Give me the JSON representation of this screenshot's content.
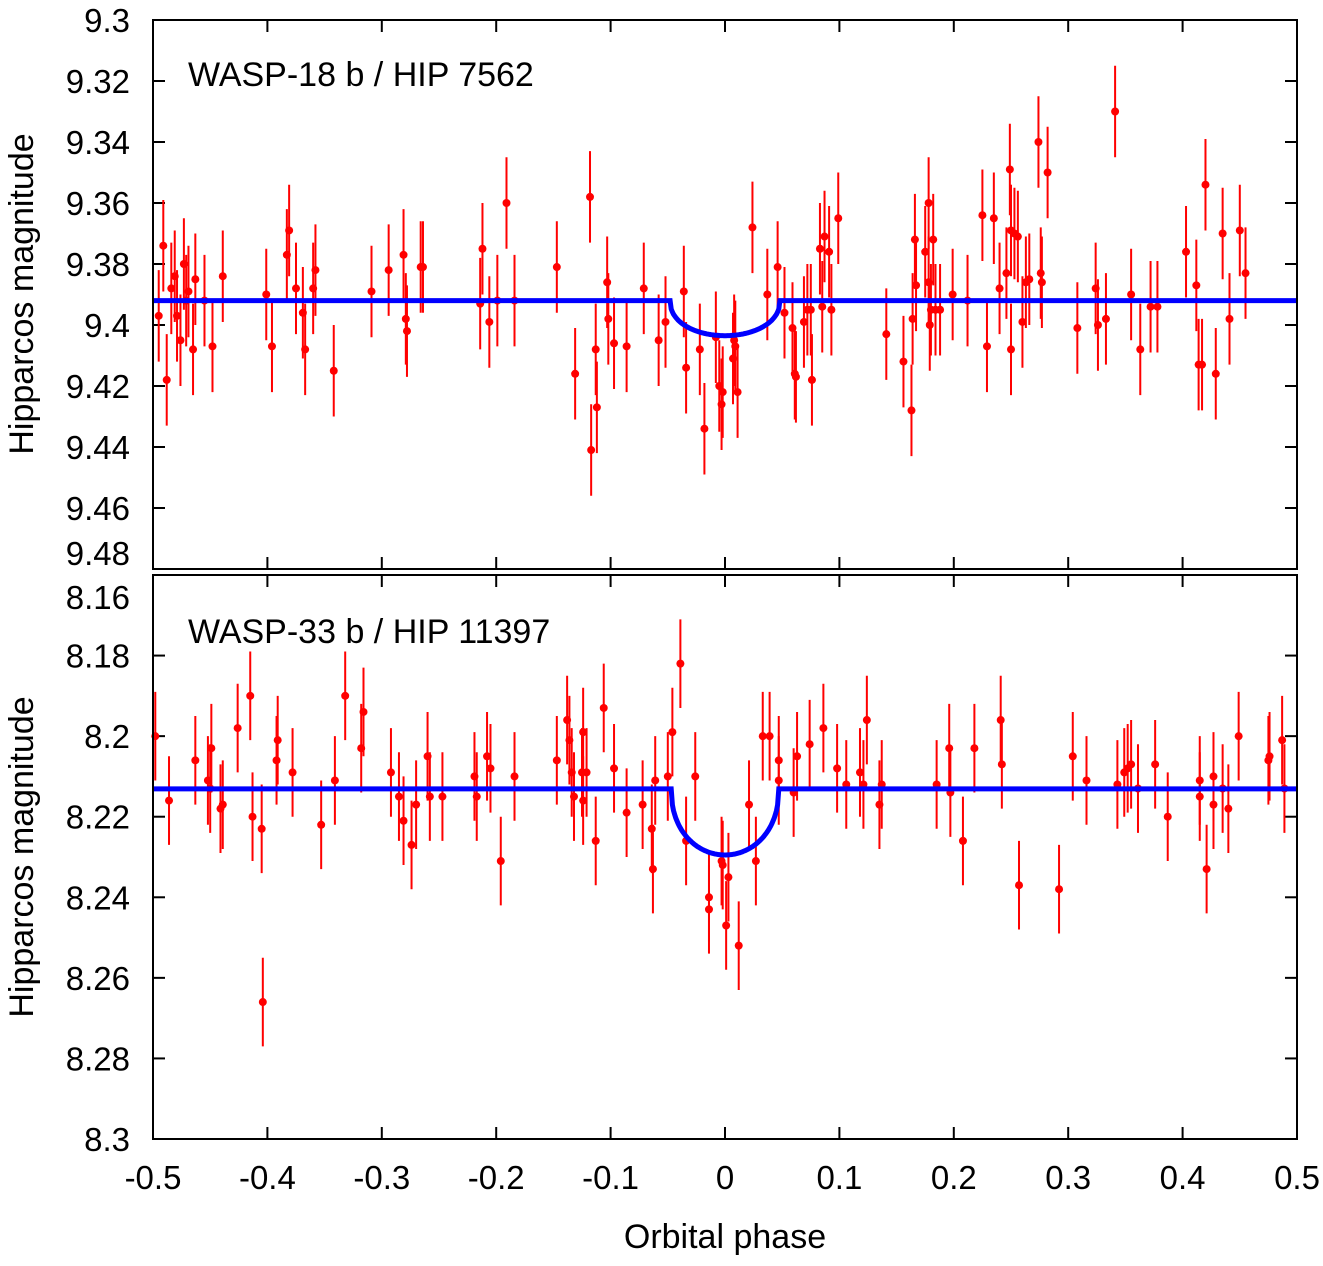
{
  "chart_data": [
    {
      "type": "scatter",
      "title": "WASP-18 b / HIP 7562",
      "xlabel": "",
      "ylabel": "Hipparcos magnitude",
      "xlim": [
        -0.5,
        0.5
      ],
      "ylim": [
        9.3,
        9.48
      ],
      "y_inverted": true,
      "y_ticks": [
        "9.3",
        "9.32",
        "9.34",
        "9.36",
        "9.38",
        "9.4",
        "9.42",
        "9.44",
        "9.46",
        "9.48"
      ],
      "point_color": "#ff0000",
      "model_color": "#0000ff",
      "typical_error": 0.015,
      "model": {
        "baseline": 9.392,
        "transit_min": 9.4035,
        "ingress": -0.048,
        "egress": 0.048
      },
      "points": [
        [
          -0.495,
          9.397
        ],
        [
          -0.491,
          9.374
        ],
        [
          -0.488,
          9.418
        ],
        [
          -0.484,
          9.388
        ],
        [
          -0.481,
          9.384
        ],
        [
          -0.479,
          9.397
        ],
        [
          -0.476,
          9.405
        ],
        [
          -0.473,
          9.38
        ],
        [
          -0.471,
          9.392
        ],
        [
          -0.469,
          9.389
        ],
        [
          -0.465,
          9.408
        ],
        [
          -0.463,
          9.385
        ],
        [
          -0.455,
          9.392
        ],
        [
          -0.448,
          9.407
        ],
        [
          -0.439,
          9.384
        ],
        [
          -0.401,
          9.39
        ],
        [
          -0.396,
          9.407
        ],
        [
          -0.383,
          9.377
        ],
        [
          -0.381,
          9.369
        ],
        [
          -0.375,
          9.388
        ],
        [
          -0.369,
          9.396
        ],
        [
          -0.367,
          9.408
        ],
        [
          -0.36,
          9.388
        ],
        [
          -0.358,
          9.382
        ],
        [
          -0.342,
          9.415
        ],
        [
          -0.309,
          9.389
        ],
        [
          -0.294,
          9.382
        ],
        [
          -0.281,
          9.377
        ],
        [
          -0.279,
          9.398
        ],
        [
          -0.278,
          9.402
        ],
        [
          -0.266,
          9.381
        ],
        [
          -0.264,
          9.381
        ],
        [
          -0.214,
          9.393
        ],
        [
          -0.212,
          9.375
        ],
        [
          -0.206,
          9.399
        ],
        [
          -0.199,
          9.392
        ],
        [
          -0.191,
          9.36
        ],
        [
          -0.184,
          9.392
        ],
        [
          -0.147,
          9.381
        ],
        [
          -0.131,
          9.416
        ],
        [
          -0.118,
          9.358
        ],
        [
          -0.117,
          9.441
        ],
        [
          -0.113,
          9.408
        ],
        [
          -0.112,
          9.427
        ],
        [
          -0.103,
          9.386
        ],
        [
          -0.102,
          9.398
        ],
        [
          -0.097,
          9.406
        ],
        [
          -0.086,
          9.407
        ],
        [
          -0.071,
          9.388
        ],
        [
          -0.058,
          9.405
        ],
        [
          -0.052,
          9.399
        ],
        [
          -0.036,
          9.389
        ],
        [
          -0.034,
          9.414
        ],
        [
          -0.022,
          9.408
        ],
        [
          -0.018,
          9.434
        ],
        [
          -0.008,
          9.404
        ],
        [
          -0.005,
          9.42
        ],
        [
          -0.003,
          9.426
        ],
        [
          -0.002,
          9.422
        ],
        [
          0.007,
          9.411
        ],
        [
          0.008,
          9.405
        ],
        [
          0.009,
          9.407
        ],
        [
          0.011,
          9.422
        ],
        [
          0.024,
          9.368
        ],
        [
          0.037,
          9.39
        ],
        [
          0.046,
          9.381
        ],
        [
          0.052,
          9.396
        ],
        [
          0.059,
          9.401
        ],
        [
          0.061,
          9.416
        ],
        [
          0.062,
          9.417
        ],
        [
          0.069,
          9.399
        ],
        [
          0.072,
          9.395
        ],
        [
          0.075,
          9.395
        ],
        [
          0.076,
          9.418
        ],
        [
          0.083,
          9.375
        ],
        [
          0.085,
          9.394
        ],
        [
          0.087,
          9.371
        ],
        [
          0.091,
          9.376
        ],
        [
          0.093,
          9.395
        ],
        [
          0.099,
          9.365
        ],
        [
          0.141,
          9.403
        ],
        [
          0.156,
          9.412
        ],
        [
          0.163,
          9.428
        ],
        [
          0.164,
          9.398
        ],
        [
          0.166,
          9.372
        ],
        [
          0.167,
          9.387
        ],
        [
          0.175,
          9.376
        ],
        [
          0.178,
          9.386
        ],
        [
          0.178,
          9.36
        ],
        [
          0.179,
          9.4
        ],
        [
          0.18,
          9.395
        ],
        [
          0.182,
          9.372
        ],
        [
          0.184,
          9.395
        ],
        [
          0.188,
          9.395
        ],
        [
          0.199,
          9.39
        ],
        [
          0.212,
          9.392
        ],
        [
          0.225,
          9.364
        ],
        [
          0.229,
          9.407
        ],
        [
          0.235,
          9.365
        ],
        [
          0.24,
          9.388
        ],
        [
          0.246,
          9.383
        ],
        [
          0.249,
          9.349
        ],
        [
          0.25,
          9.369
        ],
        [
          0.25,
          9.408
        ],
        [
          0.253,
          9.37
        ],
        [
          0.256,
          9.371
        ],
        [
          0.26,
          9.399
        ],
        [
          0.263,
          9.386
        ],
        [
          0.266,
          9.385
        ],
        [
          0.274,
          9.34
        ],
        [
          0.276,
          9.383
        ],
        [
          0.277,
          9.386
        ],
        [
          0.282,
          9.35
        ],
        [
          0.308,
          9.401
        ],
        [
          0.324,
          9.388
        ],
        [
          0.326,
          9.4
        ],
        [
          0.333,
          9.398
        ],
        [
          0.341,
          9.33
        ],
        [
          0.355,
          9.39
        ],
        [
          0.363,
          9.408
        ],
        [
          0.372,
          9.394
        ],
        [
          0.378,
          9.394
        ],
        [
          0.403,
          9.376
        ],
        [
          0.412,
          9.387
        ],
        [
          0.414,
          9.413
        ],
        [
          0.417,
          9.413
        ],
        [
          0.42,
          9.354
        ],
        [
          0.429,
          9.416
        ],
        [
          0.435,
          9.37
        ],
        [
          0.441,
          9.398
        ],
        [
          0.45,
          9.369
        ],
        [
          0.455,
          9.383
        ]
      ]
    },
    {
      "type": "scatter",
      "title": "WASP-33 b / HIP 11397",
      "xlabel": "Orbital phase",
      "ylabel": "Hipparcos magnitude",
      "xlim": [
        -0.5,
        0.5
      ],
      "ylim": [
        8.16,
        8.3
      ],
      "y_inverted": true,
      "x_ticks": [
        "-0.5",
        "-0.4",
        "-0.3",
        "-0.2",
        "-0.1",
        "0",
        "0.1",
        "0.2",
        "0.3",
        "0.4",
        "0.5"
      ],
      "y_ticks": [
        "8.16",
        "8.18",
        "8.2",
        "8.22",
        "8.24",
        "8.26",
        "8.28",
        "8.3"
      ],
      "point_color": "#ff0000",
      "model_color": "#0000ff",
      "typical_error": 0.011,
      "model": {
        "baseline": 8.2131,
        "transit_min": 8.2295,
        "ingress": -0.047,
        "egress": 0.047
      },
      "points": [
        [
          -0.498,
          8.2
        ],
        [
          -0.486,
          8.216
        ],
        [
          -0.463,
          8.206
        ],
        [
          -0.452,
          8.211
        ],
        [
          -0.45,
          8.213
        ],
        [
          -0.449,
          8.203
        ],
        [
          -0.441,
          8.218
        ],
        [
          -0.439,
          8.217
        ],
        [
          -0.426,
          8.198
        ],
        [
          -0.415,
          8.19
        ],
        [
          -0.413,
          8.22
        ],
        [
          -0.405,
          8.223
        ],
        [
          -0.404,
          8.266
        ],
        [
          -0.392,
          8.206
        ],
        [
          -0.391,
          8.201
        ],
        [
          -0.378,
          8.209
        ],
        [
          -0.353,
          8.222
        ],
        [
          -0.341,
          8.211
        ],
        [
          -0.332,
          8.19
        ],
        [
          -0.318,
          8.203
        ],
        [
          -0.316,
          8.194
        ],
        [
          -0.292,
          8.209
        ],
        [
          -0.285,
          8.215
        ],
        [
          -0.281,
          8.221
        ],
        [
          -0.274,
          8.227
        ],
        [
          -0.27,
          8.217
        ],
        [
          -0.26,
          8.205
        ],
        [
          -0.258,
          8.215
        ],
        [
          -0.247,
          8.215
        ],
        [
          -0.219,
          8.21
        ],
        [
          -0.217,
          8.215
        ],
        [
          -0.208,
          8.205
        ],
        [
          -0.205,
          8.208
        ],
        [
          -0.196,
          8.231
        ],
        [
          -0.184,
          8.21
        ],
        [
          -0.147,
          8.206
        ],
        [
          -0.138,
          8.196
        ],
        [
          -0.136,
          8.201
        ],
        [
          -0.134,
          8.209
        ],
        [
          -0.132,
          8.215
        ],
        [
          -0.125,
          8.209
        ],
        [
          -0.124,
          8.199
        ],
        [
          -0.124,
          8.216
        ],
        [
          -0.121,
          8.209
        ],
        [
          -0.113,
          8.226
        ],
        [
          -0.106,
          8.193
        ],
        [
          -0.097,
          8.208
        ],
        [
          -0.086,
          8.219
        ],
        [
          -0.072,
          8.217
        ],
        [
          -0.064,
          8.223
        ],
        [
          -0.063,
          8.233
        ],
        [
          -0.061,
          8.211
        ],
        [
          -0.05,
          8.21
        ],
        [
          -0.046,
          8.199
        ],
        [
          -0.039,
          8.182
        ],
        [
          -0.034,
          8.226
        ],
        [
          -0.026,
          8.21
        ],
        [
          -0.014,
          8.24
        ],
        [
          -0.014,
          8.243
        ],
        [
          -0.003,
          8.231
        ],
        [
          -0.002,
          8.232
        ],
        [
          0.001,
          8.247
        ],
        [
          0.003,
          8.235
        ],
        [
          0.012,
          8.252
        ],
        [
          0.021,
          8.217
        ],
        [
          0.027,
          8.231
        ],
        [
          0.033,
          8.2
        ],
        [
          0.039,
          8.2
        ],
        [
          0.047,
          8.206
        ],
        [
          0.047,
          8.211
        ],
        [
          0.06,
          8.214
        ],
        [
          0.063,
          8.205
        ],
        [
          0.074,
          8.202
        ],
        [
          0.086,
          8.198
        ],
        [
          0.098,
          8.208
        ],
        [
          0.106,
          8.212
        ],
        [
          0.118,
          8.209
        ],
        [
          0.121,
          8.212
        ],
        [
          0.124,
          8.196
        ],
        [
          0.135,
          8.217
        ],
        [
          0.137,
          8.212
        ],
        [
          0.185,
          8.212
        ],
        [
          0.196,
          8.203
        ],
        [
          0.197,
          8.214
        ],
        [
          0.208,
          8.226
        ],
        [
          0.218,
          8.203
        ],
        [
          0.241,
          8.196
        ],
        [
          0.242,
          8.207
        ],
        [
          0.257,
          8.237
        ],
        [
          0.292,
          8.238
        ],
        [
          0.304,
          8.205
        ],
        [
          0.316,
          8.211
        ],
        [
          0.343,
          8.212
        ],
        [
          0.349,
          8.209
        ],
        [
          0.352,
          8.208
        ],
        [
          0.355,
          8.207
        ],
        [
          0.361,
          8.213
        ],
        [
          0.376,
          8.207
        ],
        [
          0.387,
          8.22
        ],
        [
          0.415,
          8.211
        ],
        [
          0.415,
          8.215
        ],
        [
          0.421,
          8.233
        ],
        [
          0.427,
          8.21
        ],
        [
          0.427,
          8.217
        ],
        [
          0.435,
          8.213
        ],
        [
          0.44,
          8.218
        ],
        [
          0.449,
          8.2
        ],
        [
          0.475,
          8.206
        ],
        [
          0.476,
          8.205
        ],
        [
          0.487,
          8.201
        ],
        [
          0.489,
          8.213
        ]
      ]
    }
  ]
}
